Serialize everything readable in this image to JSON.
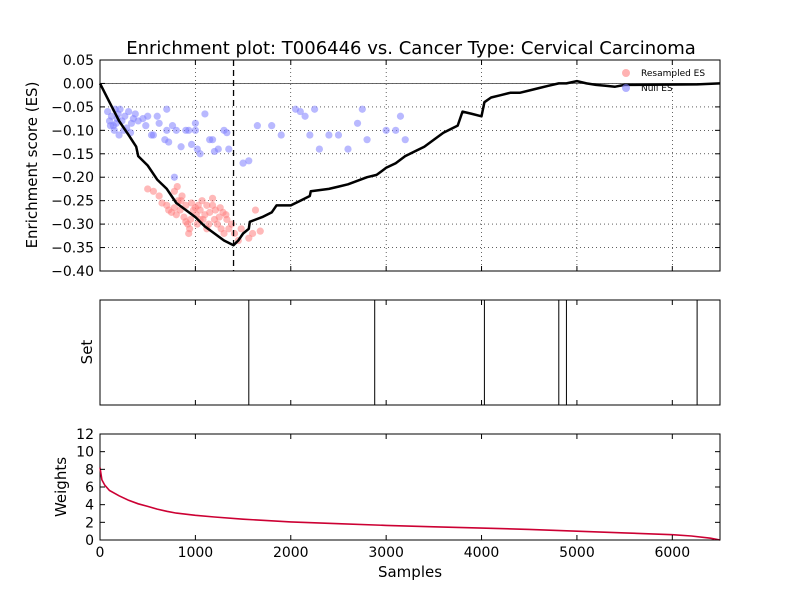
{
  "chart_data": {
    "title": "Enrichment plot: T006446 vs. Cancer Type: Cervical Carcinoma",
    "xlabel": "Samples",
    "xlim": [
      0,
      6500
    ],
    "xticks": [
      0,
      1000,
      2000,
      3000,
      4000,
      5000,
      6000
    ],
    "xtick_labels": [
      "0",
      "1000",
      "2000",
      "3000",
      "4000",
      "5000",
      "6000"
    ],
    "es_panel": {
      "type": "line",
      "ylabel": "Enrichment score (ES)",
      "ylim": [
        -0.4,
        0.05
      ],
      "yticks": [
        0.05,
        0.0,
        -0.05,
        -0.1,
        -0.15,
        -0.2,
        -0.25,
        -0.3,
        -0.35,
        -0.4
      ],
      "ytick_labels": [
        "0.05",
        "0.00",
        "−0.05",
        "−0.10",
        "−0.15",
        "−0.20",
        "−0.25",
        "−0.30",
        "−0.35",
        "−0.40"
      ],
      "min_es_x": 1400,
      "es_curve": [
        [
          0,
          0.0
        ],
        [
          100,
          -0.04
        ],
        [
          200,
          -0.08
        ],
        [
          300,
          -0.11
        ],
        [
          380,
          -0.135
        ],
        [
          400,
          -0.155
        ],
        [
          500,
          -0.175
        ],
        [
          600,
          -0.205
        ],
        [
          700,
          -0.225
        ],
        [
          800,
          -0.255
        ],
        [
          900,
          -0.27
        ],
        [
          1000,
          -0.285
        ],
        [
          1100,
          -0.305
        ],
        [
          1200,
          -0.32
        ],
        [
          1300,
          -0.335
        ],
        [
          1400,
          -0.345
        ],
        [
          1450,
          -0.335
        ],
        [
          1500,
          -0.32
        ],
        [
          1560,
          -0.31
        ],
        [
          1570,
          -0.295
        ],
        [
          1700,
          -0.285
        ],
        [
          1800,
          -0.275
        ],
        [
          1850,
          -0.26
        ],
        [
          2000,
          -0.26
        ],
        [
          2100,
          -0.25
        ],
        [
          2200,
          -0.24
        ],
        [
          2210,
          -0.23
        ],
        [
          2400,
          -0.225
        ],
        [
          2500,
          -0.22
        ],
        [
          2600,
          -0.215
        ],
        [
          2800,
          -0.2
        ],
        [
          2900,
          -0.195
        ],
        [
          3000,
          -0.18
        ],
        [
          3100,
          -0.17
        ],
        [
          3200,
          -0.155
        ],
        [
          3300,
          -0.145
        ],
        [
          3400,
          -0.135
        ],
        [
          3500,
          -0.12
        ],
        [
          3600,
          -0.105
        ],
        [
          3750,
          -0.09
        ],
        [
          3800,
          -0.06
        ],
        [
          3900,
          -0.065
        ],
        [
          4000,
          -0.07
        ],
        [
          4030,
          -0.04
        ],
        [
          4100,
          -0.03
        ],
        [
          4200,
          -0.025
        ],
        [
          4300,
          -0.02
        ],
        [
          4400,
          -0.02
        ],
        [
          4500,
          -0.015
        ],
        [
          4600,
          -0.01
        ],
        [
          4700,
          -0.005
        ],
        [
          4810,
          0.0
        ],
        [
          4890,
          0.0
        ],
        [
          5000,
          0.005
        ],
        [
          5100,
          0.0
        ],
        [
          5200,
          -0.003
        ],
        [
          5300,
          -0.005
        ],
        [
          5400,
          -0.007
        ],
        [
          5500,
          -0.003
        ],
        [
          6260,
          -0.002
        ],
        [
          6500,
          0.0
        ]
      ],
      "series": [
        {
          "name": "Resampled ES",
          "color": "#ff7f7f",
          "points": [
            [
              500,
              -0.225
            ],
            [
              560,
              -0.23
            ],
            [
              620,
              -0.24
            ],
            [
              650,
              -0.255
            ],
            [
              700,
              -0.26
            ],
            [
              720,
              -0.27
            ],
            [
              750,
              -0.275
            ],
            [
              780,
              -0.265
            ],
            [
              800,
              -0.28
            ],
            [
              820,
              -0.25
            ],
            [
              840,
              -0.27
            ],
            [
              860,
              -0.24
            ],
            [
              880,
              -0.285
            ],
            [
              900,
              -0.295
            ],
            [
              920,
              -0.3
            ],
            [
              940,
              -0.31
            ],
            [
              960,
              -0.255
            ],
            [
              980,
              -0.27
            ],
            [
              1000,
              -0.265
            ],
            [
              1010,
              -0.28
            ],
            [
              1030,
              -0.26
            ],
            [
              1050,
              -0.27
            ],
            [
              1070,
              -0.25
            ],
            [
              1080,
              -0.29
            ],
            [
              1100,
              -0.28
            ],
            [
              1120,
              -0.26
            ],
            [
              1140,
              -0.3
            ],
            [
              1150,
              -0.275
            ],
            [
              1180,
              -0.26
            ],
            [
              1200,
              -0.29
            ],
            [
              1210,
              -0.27
            ],
            [
              1230,
              -0.3
            ],
            [
              1250,
              -0.285
            ],
            [
              1270,
              -0.31
            ],
            [
              1290,
              -0.275
            ],
            [
              1300,
              -0.32
            ],
            [
              1330,
              -0.29
            ],
            [
              1350,
              -0.31
            ],
            [
              1380,
              -0.3
            ],
            [
              1410,
              -0.32
            ],
            [
              1450,
              -0.335
            ],
            [
              1480,
              -0.31
            ],
            [
              1560,
              -0.33
            ],
            [
              1600,
              -0.32
            ],
            [
              1630,
              -0.27
            ],
            [
              1680,
              -0.315
            ],
            [
              780,
              -0.23
            ],
            [
              810,
              -0.22
            ],
            [
              900,
              -0.26
            ],
            [
              950,
              -0.29
            ],
            [
              1050,
              -0.29
            ],
            [
              1120,
              -0.31
            ],
            [
              1180,
              -0.245
            ],
            [
              1260,
              -0.265
            ],
            [
              1320,
              -0.28
            ],
            [
              850,
              -0.25
            ],
            [
              930,
              -0.32
            ],
            [
              1020,
              -0.3
            ]
          ]
        },
        {
          "name": "Null ES",
          "color": "#7f7fff",
          "points": [
            [
              80,
              -0.06
            ],
            [
              100,
              -0.08
            ],
            [
              120,
              -0.07
            ],
            [
              140,
              -0.09
            ],
            [
              150,
              -0.1
            ],
            [
              160,
              -0.055
            ],
            [
              180,
              -0.075
            ],
            [
              190,
              -0.065
            ],
            [
              200,
              -0.11
            ],
            [
              210,
              -0.055
            ],
            [
              230,
              -0.08
            ],
            [
              250,
              -0.1
            ],
            [
              260,
              -0.07
            ],
            [
              280,
              -0.095
            ],
            [
              300,
              -0.06
            ],
            [
              320,
              -0.105
            ],
            [
              330,
              -0.085
            ],
            [
              350,
              -0.075
            ],
            [
              370,
              -0.065
            ],
            [
              400,
              -0.08
            ],
            [
              450,
              -0.075
            ],
            [
              480,
              -0.09
            ],
            [
              500,
              -0.07
            ],
            [
              540,
              -0.11
            ],
            [
              560,
              -0.11
            ],
            [
              600,
              -0.07
            ],
            [
              620,
              -0.085
            ],
            [
              680,
              -0.12
            ],
            [
              700,
              -0.055
            ],
            [
              720,
              -0.125
            ],
            [
              760,
              -0.09
            ],
            [
              780,
              -0.2
            ],
            [
              800,
              -0.1
            ],
            [
              850,
              -0.135
            ],
            [
              900,
              -0.1
            ],
            [
              930,
              -0.1
            ],
            [
              960,
              -0.13
            ],
            [
              1000,
              -0.1
            ],
            [
              1020,
              -0.14
            ],
            [
              1050,
              -0.15
            ],
            [
              1100,
              -0.065
            ],
            [
              1150,
              -0.12
            ],
            [
              1180,
              -0.12
            ],
            [
              1200,
              -0.145
            ],
            [
              1240,
              -0.14
            ],
            [
              1300,
              -0.1
            ],
            [
              1330,
              -0.105
            ],
            [
              1350,
              -0.14
            ],
            [
              1500,
              -0.17
            ],
            [
              1560,
              -0.165
            ],
            [
              1650,
              -0.09
            ],
            [
              1800,
              -0.09
            ],
            [
              1900,
              -0.11
            ],
            [
              2050,
              -0.055
            ],
            [
              2100,
              -0.06
            ],
            [
              2150,
              -0.07
            ],
            [
              2200,
              -0.11
            ],
            [
              2250,
              -0.055
            ],
            [
              2300,
              -0.14
            ],
            [
              2400,
              -0.11
            ],
            [
              2500,
              -0.11
            ],
            [
              2600,
              -0.14
            ],
            [
              2700,
              -0.085
            ],
            [
              2750,
              -0.055
            ],
            [
              2800,
              -0.12
            ],
            [
              3000,
              -0.1
            ],
            [
              3100,
              -0.1
            ],
            [
              3150,
              -0.07
            ],
            [
              3200,
              -0.12
            ],
            [
              1000,
              -0.085
            ],
            [
              700,
              -0.1
            ],
            [
              110,
              -0.09
            ],
            [
              170,
              -0.085
            ]
          ]
        }
      ]
    },
    "set_panel": {
      "ylabel": "Set",
      "hits": [
        1560,
        2880,
        4030,
        4810,
        4890,
        6260
      ]
    },
    "weights_panel": {
      "type": "line",
      "ylabel": "Weights",
      "ylim": [
        0,
        12
      ],
      "yticks": [
        0,
        2,
        4,
        6,
        8,
        10,
        12
      ],
      "ytick_labels": [
        "0",
        "2",
        "4",
        "6",
        "8",
        "10",
        "12"
      ],
      "line_color": "#cc0033",
      "curve": [
        [
          0,
          8.2
        ],
        [
          20,
          6.8
        ],
        [
          50,
          6.2
        ],
        [
          100,
          5.6
        ],
        [
          200,
          5.0
        ],
        [
          300,
          4.5
        ],
        [
          400,
          4.1
        ],
        [
          500,
          3.8
        ],
        [
          600,
          3.5
        ],
        [
          700,
          3.25
        ],
        [
          800,
          3.05
        ],
        [
          1000,
          2.8
        ],
        [
          1200,
          2.6
        ],
        [
          1500,
          2.35
        ],
        [
          2000,
          2.05
        ],
        [
          2500,
          1.85
        ],
        [
          3000,
          1.65
        ],
        [
          3500,
          1.5
        ],
        [
          4000,
          1.35
        ],
        [
          4500,
          1.2
        ],
        [
          5000,
          1.0
        ],
        [
          5500,
          0.8
        ],
        [
          6000,
          0.6
        ],
        [
          6200,
          0.45
        ],
        [
          6400,
          0.2
        ],
        [
          6500,
          0.0
        ]
      ]
    },
    "legend": {
      "placement": "top-right",
      "entries": [
        "Resampled ES",
        "Null ES"
      ]
    }
  }
}
